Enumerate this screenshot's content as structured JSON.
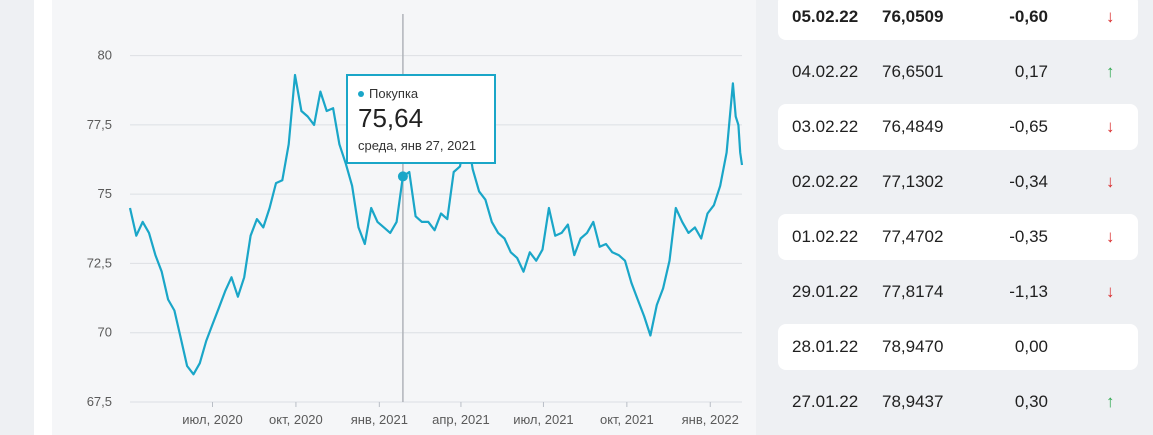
{
  "chart_data": {
    "type": "line",
    "series": [
      {
        "name": "Покупка",
        "values": [
          [
            "2020-04-01",
            74.5
          ],
          [
            "2020-04-08",
            73.5
          ],
          [
            "2020-04-15",
            74.0
          ],
          [
            "2020-04-22",
            73.6
          ],
          [
            "2020-04-29",
            72.8
          ],
          [
            "2020-05-06",
            72.2
          ],
          [
            "2020-05-13",
            71.2
          ],
          [
            "2020-05-20",
            70.8
          ],
          [
            "2020-05-27",
            69.8
          ],
          [
            "2020-06-03",
            68.8
          ],
          [
            "2020-06-10",
            68.5
          ],
          [
            "2020-06-17",
            68.9
          ],
          [
            "2020-06-24",
            69.7
          ],
          [
            "2020-07-01",
            70.3
          ],
          [
            "2020-07-08",
            70.9
          ],
          [
            "2020-07-15",
            71.5
          ],
          [
            "2020-07-22",
            72.0
          ],
          [
            "2020-07-29",
            71.3
          ],
          [
            "2020-08-05",
            72.0
          ],
          [
            "2020-08-12",
            73.5
          ],
          [
            "2020-08-19",
            74.1
          ],
          [
            "2020-08-26",
            73.8
          ],
          [
            "2020-09-02",
            74.5
          ],
          [
            "2020-09-09",
            75.4
          ],
          [
            "2020-09-16",
            75.5
          ],
          [
            "2020-09-23",
            76.8
          ],
          [
            "2020-09-30",
            79.3
          ],
          [
            "2020-10-07",
            78.0
          ],
          [
            "2020-10-14",
            77.8
          ],
          [
            "2020-10-21",
            77.5
          ],
          [
            "2020-10-28",
            78.7
          ],
          [
            "2020-11-04",
            78.0
          ],
          [
            "2020-11-11",
            78.1
          ],
          [
            "2020-11-18",
            76.8
          ],
          [
            "2020-11-25",
            76.1
          ],
          [
            "2020-12-02",
            75.3
          ],
          [
            "2020-12-09",
            73.8
          ],
          [
            "2020-12-16",
            73.2
          ],
          [
            "2020-12-23",
            74.5
          ],
          [
            "2020-12-30",
            74.0
          ],
          [
            "2021-01-06",
            73.8
          ],
          [
            "2021-01-13",
            73.6
          ],
          [
            "2021-01-20",
            74.0
          ],
          [
            "2021-01-27",
            75.64
          ],
          [
            "2021-02-03",
            75.8
          ],
          [
            "2021-02-10",
            74.2
          ],
          [
            "2021-02-17",
            74.0
          ],
          [
            "2021-02-24",
            74.0
          ],
          [
            "2021-03-03",
            73.7
          ],
          [
            "2021-03-10",
            74.3
          ],
          [
            "2021-03-17",
            74.1
          ],
          [
            "2021-03-24",
            75.8
          ],
          [
            "2021-03-31",
            76.0
          ],
          [
            "2021-04-07",
            77.3
          ],
          [
            "2021-04-14",
            75.9
          ],
          [
            "2021-04-21",
            75.1
          ],
          [
            "2021-04-28",
            74.8
          ],
          [
            "2021-05-05",
            74.0
          ],
          [
            "2021-05-12",
            73.6
          ],
          [
            "2021-05-19",
            73.4
          ],
          [
            "2021-05-26",
            72.9
          ],
          [
            "2021-06-02",
            72.7
          ],
          [
            "2021-06-09",
            72.2
          ],
          [
            "2021-06-16",
            72.9
          ],
          [
            "2021-06-23",
            72.6
          ],
          [
            "2021-06-30",
            73.0
          ],
          [
            "2021-07-07",
            74.5
          ],
          [
            "2021-07-14",
            73.5
          ],
          [
            "2021-07-21",
            73.6
          ],
          [
            "2021-07-28",
            73.9
          ],
          [
            "2021-08-04",
            72.8
          ],
          [
            "2021-08-11",
            73.4
          ],
          [
            "2021-08-18",
            73.6
          ],
          [
            "2021-08-25",
            74.0
          ],
          [
            "2021-09-01",
            73.1
          ],
          [
            "2021-09-08",
            73.2
          ],
          [
            "2021-09-15",
            72.9
          ],
          [
            "2021-09-22",
            72.8
          ],
          [
            "2021-09-29",
            72.6
          ],
          [
            "2021-10-06",
            71.8
          ],
          [
            "2021-10-13",
            71.2
          ],
          [
            "2021-10-20",
            70.6
          ],
          [
            "2021-10-27",
            69.9
          ],
          [
            "2021-11-03",
            71.0
          ],
          [
            "2021-11-10",
            71.6
          ],
          [
            "2021-11-17",
            72.6
          ],
          [
            "2021-11-24",
            74.5
          ],
          [
            "2021-12-01",
            74.0
          ],
          [
            "2021-12-08",
            73.6
          ],
          [
            "2021-12-15",
            73.8
          ],
          [
            "2021-12-22",
            73.4
          ],
          [
            "2021-12-29",
            74.3
          ],
          [
            "2022-01-05",
            74.6
          ],
          [
            "2022-01-12",
            75.3
          ],
          [
            "2022-01-19",
            76.5
          ],
          [
            "2022-01-26",
            79.0
          ],
          [
            "2022-01-29",
            77.8
          ],
          [
            "2022-02-01",
            77.5
          ],
          [
            "2022-02-03",
            76.5
          ],
          [
            "2022-02-05",
            76.05
          ]
        ]
      }
    ],
    "ylim": [
      67.5,
      81.5
    ],
    "y_ticks": [
      "67,5",
      "70",
      "72,5",
      "75",
      "77,5",
      "80"
    ],
    "x_ticks": [
      {
        "date": "2020-07-01",
        "label": "июл, 2020"
      },
      {
        "date": "2020-10-01",
        "label": "окт, 2020"
      },
      {
        "date": "2021-01-01",
        "label": "янв, 2021"
      },
      {
        "date": "2021-04-01",
        "label": "апр, 2021"
      },
      {
        "date": "2021-07-01",
        "label": "июл, 2021"
      },
      {
        "date": "2021-10-01",
        "label": "окт, 2021"
      },
      {
        "date": "2022-01-01",
        "label": "янв, 2022"
      }
    ],
    "grid": true,
    "line_color": "#1aa6c8"
  },
  "tooltip": {
    "series": "Покупка",
    "value": "75,64",
    "date": "среда, янв 27, 2021",
    "x": "2021-01-27",
    "y": 75.64
  },
  "table": {
    "rows": [
      {
        "date": "05.02.22",
        "rate": "76,0509",
        "change": "-0,60",
        "trend": "down"
      },
      {
        "date": "04.02.22",
        "rate": "76,6501",
        "change": "0,17",
        "trend": "up"
      },
      {
        "date": "03.02.22",
        "rate": "76,4849",
        "change": "-0,65",
        "trend": "down"
      },
      {
        "date": "02.02.22",
        "rate": "77,1302",
        "change": "-0,34",
        "trend": "down"
      },
      {
        "date": "01.02.22",
        "rate": "77,4702",
        "change": "-0,35",
        "trend": "down"
      },
      {
        "date": "29.01.22",
        "rate": "77,8174",
        "change": "-1,13",
        "trend": "down"
      },
      {
        "date": "28.01.22",
        "rate": "78,9470",
        "change": "0,00",
        "trend": "none"
      },
      {
        "date": "27.01.22",
        "rate": "78,9437",
        "change": "0,30",
        "trend": "up"
      }
    ]
  },
  "colors": {
    "up": "#2ea84f",
    "down": "#d92b2b"
  }
}
